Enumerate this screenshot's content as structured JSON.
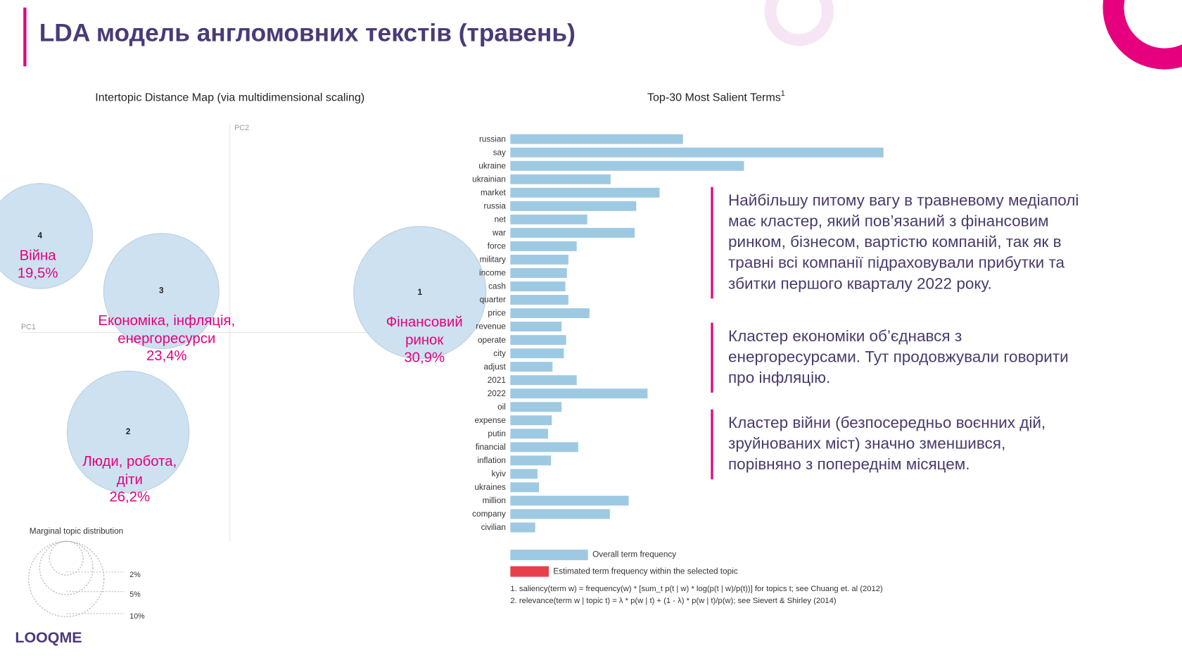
{
  "header": {
    "title": "LDA модель англомовних текстів (травень)"
  },
  "chart_data": [
    {
      "type": "bubble",
      "title": "Intertopic Distance Map (via multidimensional scaling)",
      "xlabel": "PC1",
      "ylabel": "PC2",
      "categories": [
        "1",
        "2",
        "3",
        "4"
      ],
      "topic_names": [
        [
          "Фінансовий",
          "ринок"
        ],
        [
          "Люди, робота,",
          "діти"
        ],
        [
          "Економіка, інфляція,",
          "енергоресурси"
        ],
        [
          "Війна"
        ]
      ],
      "values": [
        30.9,
        26.2,
        23.4,
        19.5
      ],
      "value_labels": [
        "30,9%",
        "26,2%",
        "23,4%",
        "19,5%"
      ],
      "color": "#c9deee",
      "size_legend": {
        "title": "Marginal topic distribution",
        "ticks": [
          {
            "value": 2,
            "label": "2%"
          },
          {
            "value": 5,
            "label": "5%"
          },
          {
            "value": 10,
            "label": "10%"
          }
        ]
      }
    },
    {
      "type": "bar",
      "orientation": "horizontal",
      "title": "Top-30 Most Salient Terms",
      "title_note": "1",
      "categories": [
        "russian",
        "say",
        "ukraine",
        "ukrainian",
        "market",
        "russia",
        "net",
        "war",
        "force",
        "military",
        "income",
        "cash",
        "quarter",
        "price",
        "revenue",
        "operate",
        "city",
        "adjust",
        "2021",
        "2022",
        "oil",
        "expense",
        "putin",
        "financial",
        "inflation",
        "kyiv",
        "ukraines",
        "million",
        "company",
        "civilian"
      ],
      "values": [
        229,
        495,
        310,
        133,
        198,
        167,
        102,
        165,
        88,
        77,
        75,
        73,
        77,
        105,
        68,
        74,
        71,
        56,
        88,
        182,
        68,
        55,
        50,
        90,
        54,
        36,
        38,
        157,
        132,
        33
      ],
      "color": "#9ec9e2",
      "legend": [
        {
          "name": "Overall term frequency",
          "color": "#9ec9e2"
        },
        {
          "name": "Estimated term frequency within the selected topic",
          "color": "#e8404a"
        }
      ],
      "footnotes": [
        "1. saliency(term w) = frequency(w) * [sum_t p(t | w) * log(p(t | w)/p(t))] for topics t; see Chuang et. al (2012)",
        "2. relevance(term w | topic t) = λ * p(w | t) + (1 - λ) * p(w | t)/p(w); see Sievert & Shirley (2014)"
      ]
    }
  ],
  "notes": [
    [
      "Найбільшу питому вагу в травневому медіаполі",
      "має кластер, який пов’язаний з фінансовим",
      "ринком, бізнесом, вартістю компаній, так як в",
      "травні всі компанії підраховували прибутки та",
      "збитки першого кварталу 2022 року."
    ],
    [
      "Кластер економіки об’єднався з",
      "енергоресурсами. Тут продовжували говорити",
      "про інфляцію."
    ],
    [
      "Кластер війни (безпосередньо воєнних дій,",
      "зруйнованих міст) значно зменшився,",
      "порівняно з попереднім місяцем."
    ]
  ],
  "logo": "LOOQME"
}
